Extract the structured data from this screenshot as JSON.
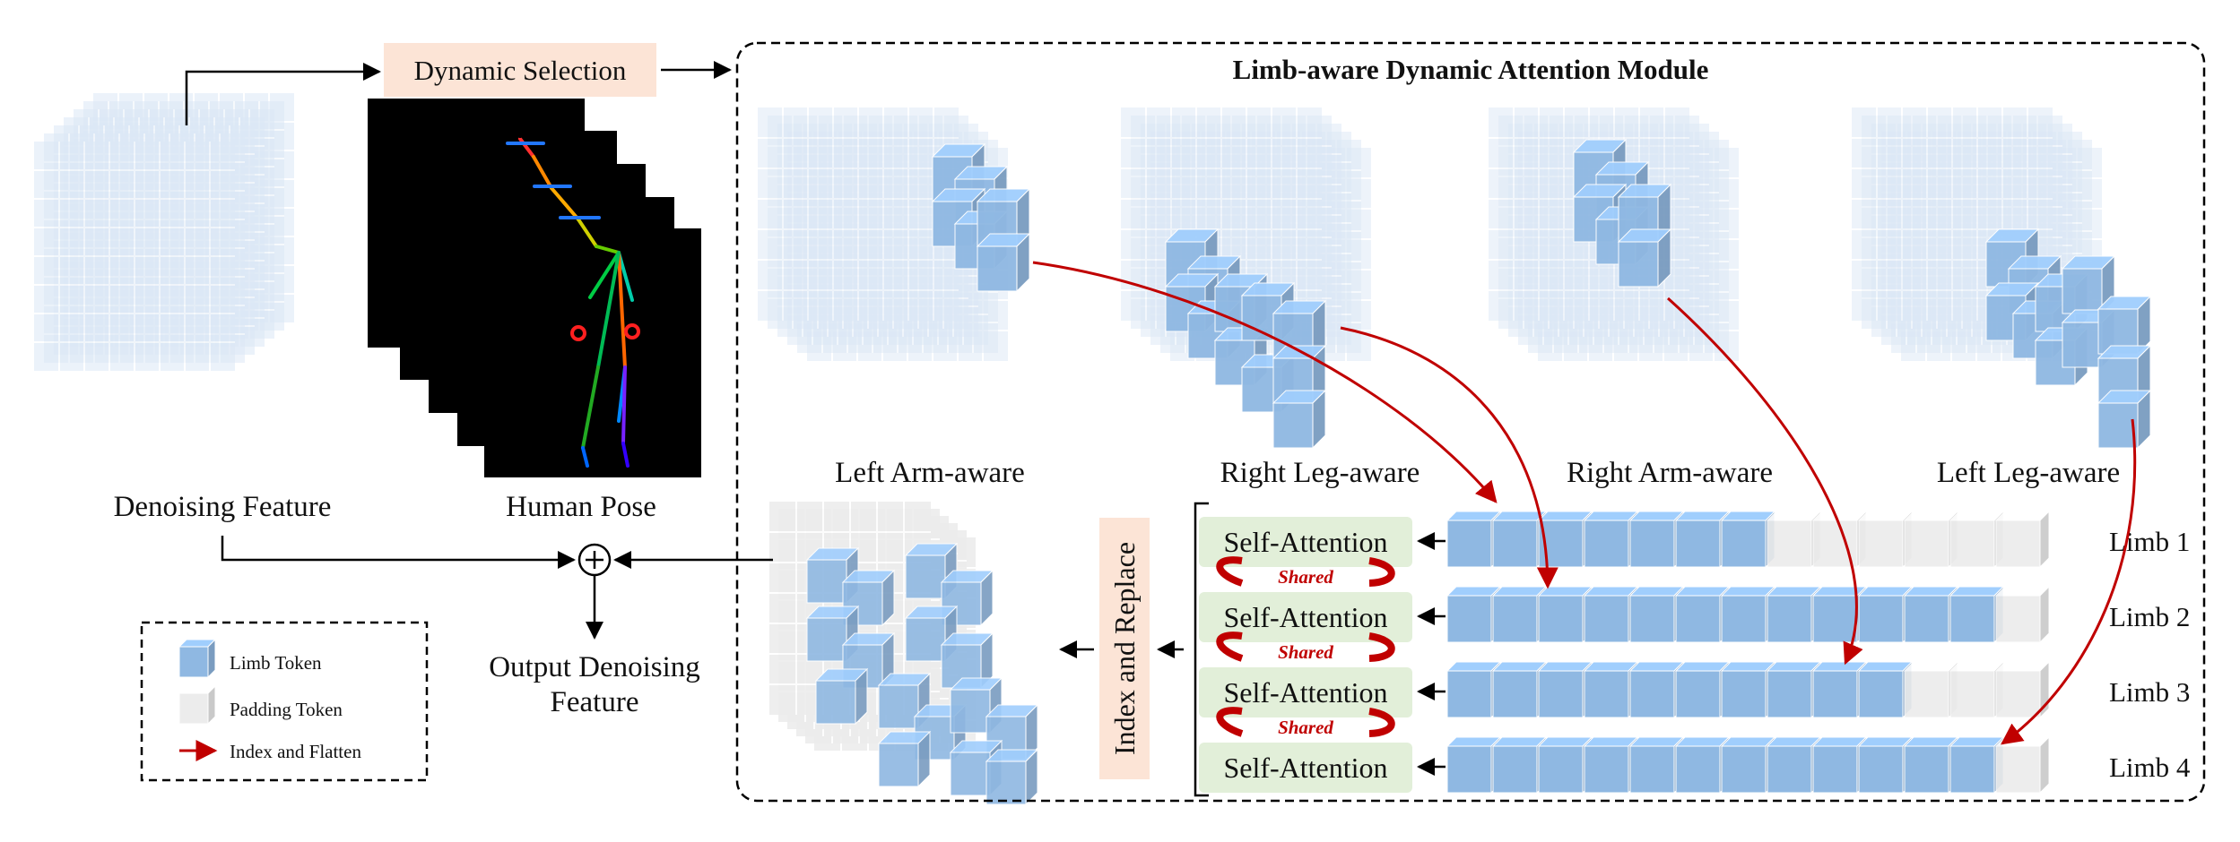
{
  "module": {
    "title": "Limb-aware Dynamic Attention Module"
  },
  "inputs": {
    "denoising_feature": "Denoising Feature",
    "human_pose": "Human Pose",
    "dynamic_selection": "Dynamic Selection"
  },
  "output": {
    "line1": "Output Denoising",
    "line2": "Feature"
  },
  "aware_labels": [
    "Left Arm-aware",
    "Right Leg-aware",
    "Right Arm-aware",
    "Left Leg-aware"
  ],
  "self_attention_label": "Self-Attention",
  "shared_label": "Shared",
  "index_replace": "Index and Replace",
  "limbs": [
    {
      "label": "Limb 1",
      "limb_tokens": 7,
      "padding_tokens": 6
    },
    {
      "label": "Limb 2",
      "limb_tokens": 12,
      "padding_tokens": 1
    },
    {
      "label": "Limb 3",
      "limb_tokens": 10,
      "padding_tokens": 3
    },
    {
      "label": "Limb 4",
      "limb_tokens": 12,
      "padding_tokens": 1
    }
  ],
  "legend": {
    "limb_token": "Limb Token",
    "padding_token": "Padding Token",
    "index_flatten": "Index and Flatten"
  },
  "colors": {
    "limb_token": "#8fb8e2",
    "padding_token": "#ececec",
    "feature_block": "#dce8f6",
    "arrow_red": "#c00000",
    "dynamic_selection_bg": "#fce4d6",
    "self_attention_bg": "#e2efd9",
    "index_replace_bg": "#fce4d6"
  }
}
